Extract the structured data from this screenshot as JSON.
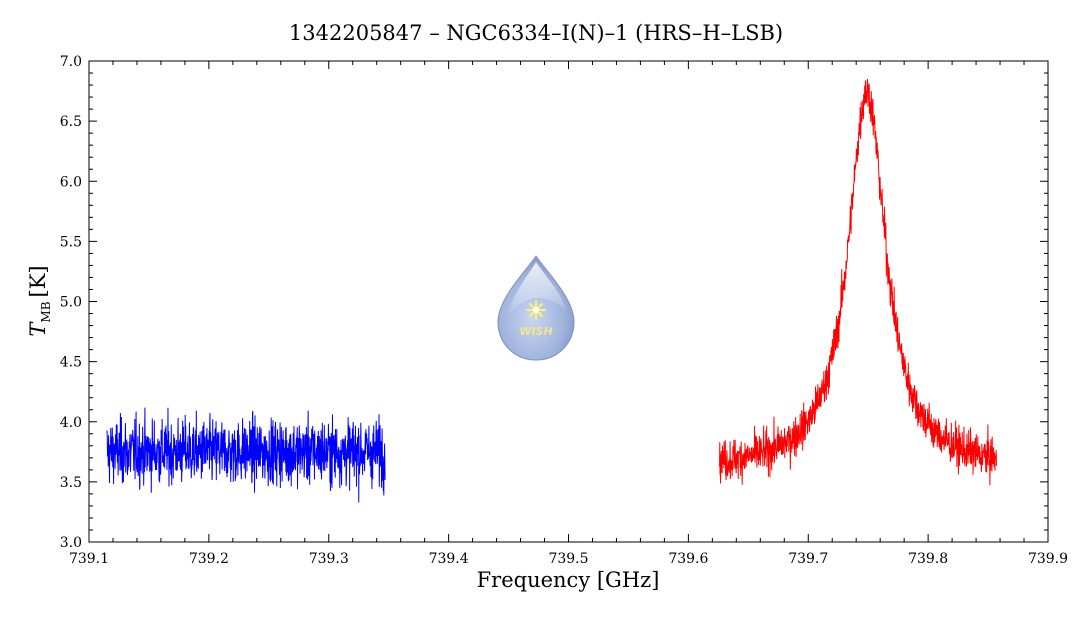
{
  "chart_data": {
    "type": "line",
    "title": "1342205847 – NGC6334–I(N)–1 (HRS–H–LSB)",
    "xlabel": "Frequency [GHz]",
    "ylabel_main": "T",
    "ylabel_sub": "MB",
    "ylabel_unit": "[K]",
    "xlim": [
      739.1,
      739.9
    ],
    "ylim": [
      3.0,
      7.0
    ],
    "x_ticks": [
      "739.1",
      "739.2",
      "739.3",
      "739.4",
      "739.5",
      "739.6",
      "739.7",
      "739.8",
      "739.9"
    ],
    "y_ticks": [
      "3.0",
      "3.5",
      "4.0",
      "4.5",
      "5.0",
      "5.5",
      "6.0",
      "6.5",
      "7.0"
    ],
    "grid": false,
    "series": [
      {
        "color": "#0000ff",
        "x_range": [
          739.115,
          739.347
        ],
        "baseline": 3.75,
        "noise_sd": 0.19,
        "points": 1100
      },
      {
        "color": "#ff0000",
        "x_range": [
          739.626,
          739.857
        ],
        "continuum": 3.6,
        "peak_center": 739.749,
        "peak_height": 3.15,
        "peak_hwhm": 0.019,
        "noise_sd": 0.12,
        "points": 1100
      }
    ],
    "logo": {
      "text": "WISH",
      "body_color": "#9fb3dc",
      "star_color": "#fff36a"
    }
  }
}
